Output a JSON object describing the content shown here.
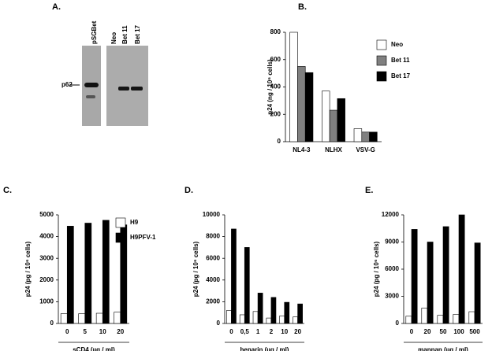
{
  "panel_a": {
    "label": "A.",
    "lanes": [
      "pSGBet",
      "Neo",
      "Bet 11",
      "Bet 17"
    ],
    "marker": "p62"
  },
  "chart_data": [
    {
      "type": "bar",
      "label": "B.",
      "ylabel": "p24 (ng / 10⁶ cells)",
      "categories": [
        "NL4-3",
        "NLHX",
        "VSV-G"
      ],
      "series": [
        {
          "name": "Neo",
          "color": "#ffffff",
          "values": [
            800,
            370,
            95
          ]
        },
        {
          "name": "Bet 11",
          "color": "#808080",
          "values": [
            550,
            230,
            70
          ]
        },
        {
          "name": "Bet 17",
          "color": "#000000",
          "values": [
            505,
            315,
            70
          ]
        }
      ],
      "ylim": [
        0,
        800
      ],
      "yticks": [
        0,
        200,
        400,
        600,
        800
      ]
    },
    {
      "type": "bar",
      "label": "C.",
      "ylabel": "p24 (pg / 10⁶ cells)",
      "xlabel": "sCD4 (µg / ml)",
      "categories": [
        "0",
        "5",
        "10",
        "20"
      ],
      "series": [
        {
          "name": "H9",
          "color": "#ffffff",
          "values": [
            450,
            450,
            470,
            520
          ]
        },
        {
          "name": "H9PFV-1",
          "color": "#000000",
          "values": [
            4480,
            4620,
            4750,
            4540
          ]
        }
      ],
      "ylim": [
        0,
        5000
      ],
      "yticks": [
        0,
        1000,
        2000,
        3000,
        4000,
        5000
      ]
    },
    {
      "type": "bar",
      "label": "D.",
      "ylabel": "p24 (pg / 10⁶ cells)",
      "xlabel": "heparin (µg / ml)",
      "categories": [
        "0",
        "0,5",
        "1",
        "2",
        "10",
        "20"
      ],
      "series": [
        {
          "color": "#ffffff",
          "values": [
            1200,
            800,
            1100,
            500,
            700,
            600
          ]
        },
        {
          "color": "#000000",
          "values": [
            8700,
            7000,
            2800,
            2400,
            1950,
            1800
          ]
        }
      ],
      "ylim": [
        0,
        10000
      ],
      "yticks": [
        0,
        2000,
        4000,
        6000,
        8000,
        10000
      ]
    },
    {
      "type": "bar",
      "label": "E.",
      "ylabel": "p24 (pg / 10⁶ cells)",
      "xlabel": "mannan (µg / ml)",
      "categories": [
        "0",
        "20",
        "50",
        "100",
        "500"
      ],
      "series": [
        {
          "color": "#ffffff",
          "values": [
            800,
            1700,
            900,
            1000,
            1300
          ]
        },
        {
          "color": "#000000",
          "values": [
            10400,
            9000,
            10700,
            12000,
            8900
          ]
        }
      ],
      "ylim": [
        0,
        12000
      ],
      "yticks": [
        0,
        3000,
        6000,
        9000,
        12000
      ]
    }
  ]
}
